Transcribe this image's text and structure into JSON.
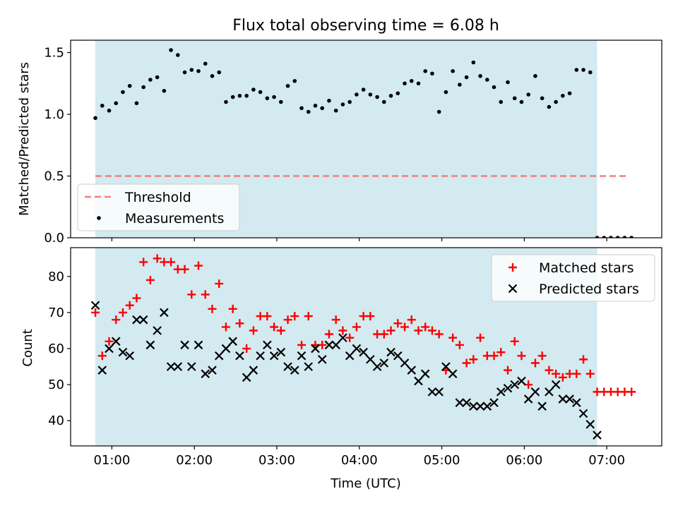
{
  "chart_data": [
    {
      "type": "scatter",
      "title": "Flux total observing time = 6.08 h",
      "ylabel": "Matched/Predicted stars",
      "xlabel": "",
      "xlim": [
        "00:30",
        "07:40"
      ],
      "ylim": [
        0,
        1.6
      ],
      "y_ticks": [
        "0.0",
        "0.5",
        "1.0",
        "1.5"
      ],
      "x_ticks": [
        "01:00",
        "02:00",
        "03:00",
        "04:00",
        "05:00",
        "06:00",
        "07:00"
      ],
      "observing_window": [
        "00:48",
        "06:53"
      ],
      "observing_window_color": "#d3eaf0",
      "grid": false,
      "legend_position": "lower-left",
      "legend": [
        "Threshold",
        "Measurements"
      ],
      "series": [
        {
          "name": "Threshold",
          "style": "dashed-line",
          "color": "#f08080",
          "x": [
            "00:48",
            "07:15"
          ],
          "y": [
            0.5,
            0.5
          ]
        },
        {
          "name": "Measurements",
          "style": "dot",
          "color": "#000000",
          "x": [
            "00:48",
            "00:53",
            "00:58",
            "01:03",
            "01:08",
            "01:13",
            "01:18",
            "01:23",
            "01:28",
            "01:33",
            "01:38",
            "01:43",
            "01:48",
            "01:53",
            "01:58",
            "02:03",
            "02:08",
            "02:13",
            "02:18",
            "02:23",
            "02:28",
            "02:33",
            "02:38",
            "02:43",
            "02:48",
            "02:53",
            "02:58",
            "03:03",
            "03:08",
            "03:13",
            "03:18",
            "03:23",
            "03:28",
            "03:33",
            "03:38",
            "03:43",
            "03:48",
            "03:53",
            "03:58",
            "04:03",
            "04:08",
            "04:13",
            "04:18",
            "04:23",
            "04:28",
            "04:33",
            "04:38",
            "04:43",
            "04:48",
            "04:53",
            "04:58",
            "05:03",
            "05:08",
            "05:13",
            "05:18",
            "05:23",
            "05:28",
            "05:33",
            "05:38",
            "05:43",
            "05:48",
            "05:53",
            "05:58",
            "06:03",
            "06:08",
            "06:13",
            "06:18",
            "06:23",
            "06:28",
            "06:33",
            "06:38",
            "06:43",
            "06:48",
            "06:53",
            "06:58",
            "07:03",
            "07:08",
            "07:13",
            "07:18"
          ],
          "y": [
            0.97,
            1.07,
            1.03,
            1.09,
            1.18,
            1.23,
            1.09,
            1.22,
            1.28,
            1.3,
            1.19,
            1.52,
            1.48,
            1.34,
            1.36,
            1.35,
            1.41,
            1.31,
            1.34,
            1.1,
            1.14,
            1.15,
            1.15,
            1.2,
            1.18,
            1.13,
            1.14,
            1.1,
            1.23,
            1.27,
            1.05,
            1.02,
            1.07,
            1.05,
            1.11,
            1.03,
            1.08,
            1.1,
            1.16,
            1.2,
            1.16,
            1.14,
            1.1,
            1.15,
            1.17,
            1.25,
            1.27,
            1.25,
            1.35,
            1.33,
            1.02,
            1.18,
            1.35,
            1.24,
            1.3,
            1.42,
            1.31,
            1.28,
            1.22,
            1.1,
            1.26,
            1.13,
            1.1,
            1.16,
            1.31,
            1.13,
            1.06,
            1.1,
            1.15,
            1.17,
            1.36,
            1.36,
            1.34,
            0.0,
            0.0,
            0.0,
            0.0,
            0.0,
            0.0
          ]
        }
      ]
    },
    {
      "type": "scatter",
      "title": "",
      "ylabel": "Count",
      "xlabel": "Time (UTC)",
      "xlim": [
        "00:30",
        "07:40"
      ],
      "ylim": [
        33,
        88
      ],
      "y_ticks": [
        "40",
        "50",
        "60",
        "70",
        "80"
      ],
      "x_ticks": [
        "01:00",
        "02:00",
        "03:00",
        "04:00",
        "05:00",
        "06:00",
        "07:00"
      ],
      "observing_window": [
        "00:48",
        "06:53"
      ],
      "observing_window_color": "#d3eaf0",
      "grid": false,
      "legend_position": "top-right",
      "legend": [
        "Matched stars",
        "Predicted stars"
      ],
      "series": [
        {
          "name": "Matched stars",
          "style": "plus",
          "color": "#ff0000",
          "x": [
            "00:48",
            "00:53",
            "00:58",
            "01:03",
            "01:08",
            "01:13",
            "01:18",
            "01:23",
            "01:28",
            "01:33",
            "01:38",
            "01:43",
            "01:48",
            "01:53",
            "01:58",
            "02:03",
            "02:08",
            "02:13",
            "02:18",
            "02:23",
            "02:28",
            "02:33",
            "02:38",
            "02:43",
            "02:48",
            "02:53",
            "02:58",
            "03:03",
            "03:08",
            "03:13",
            "03:18",
            "03:23",
            "03:28",
            "03:33",
            "03:38",
            "03:43",
            "03:48",
            "03:53",
            "03:58",
            "04:03",
            "04:08",
            "04:13",
            "04:18",
            "04:23",
            "04:28",
            "04:33",
            "04:38",
            "04:43",
            "04:48",
            "04:53",
            "04:58",
            "05:03",
            "05:08",
            "05:13",
            "05:18",
            "05:23",
            "05:28",
            "05:33",
            "05:38",
            "05:43",
            "05:48",
            "05:53",
            "05:58",
            "06:03",
            "06:08",
            "06:13",
            "06:18",
            "06:23",
            "06:28",
            "06:33",
            "06:38",
            "06:43",
            "06:48",
            "06:53",
            "06:58",
            "07:03",
            "07:08",
            "07:13",
            "07:18"
          ],
          "y": [
            70,
            58,
            62,
            68,
            70,
            72,
            74,
            84,
            79,
            85,
            84,
            84,
            82,
            82,
            75,
            83,
            75,
            71,
            78,
            66,
            71,
            67,
            60,
            65,
            69,
            69,
            66,
            65,
            68,
            69,
            61,
            69,
            61,
            61,
            64,
            68,
            65,
            63,
            66,
            69,
            69,
            64,
            64,
            65,
            67,
            66,
            68,
            65,
            66,
            65,
            64,
            54,
            63,
            61,
            56,
            57,
            63,
            58,
            58,
            59,
            54,
            62,
            58,
            50,
            56,
            58,
            54,
            53,
            52,
            53,
            53,
            57,
            53,
            48,
            48,
            48,
            48,
            48,
            48
          ]
        },
        {
          "name": "Predicted stars",
          "style": "x",
          "color": "#000000",
          "x": [
            "00:48",
            "00:53",
            "00:58",
            "01:03",
            "01:08",
            "01:13",
            "01:18",
            "01:23",
            "01:28",
            "01:33",
            "01:38",
            "01:43",
            "01:48",
            "01:53",
            "01:58",
            "02:03",
            "02:08",
            "02:13",
            "02:18",
            "02:23",
            "02:28",
            "02:33",
            "02:38",
            "02:43",
            "02:48",
            "02:53",
            "02:58",
            "03:03",
            "03:08",
            "03:13",
            "03:18",
            "03:23",
            "03:28",
            "03:33",
            "03:38",
            "03:43",
            "03:48",
            "03:53",
            "03:58",
            "04:03",
            "04:08",
            "04:13",
            "04:18",
            "04:23",
            "04:28",
            "04:33",
            "04:38",
            "04:43",
            "04:48",
            "04:53",
            "04:58",
            "05:03",
            "05:08",
            "05:13",
            "05:18",
            "05:23",
            "05:28",
            "05:33",
            "05:38",
            "05:43",
            "05:48",
            "05:53",
            "05:58",
            "06:03",
            "06:08",
            "06:13",
            "06:18",
            "06:23",
            "06:28",
            "06:33",
            "06:38",
            "06:43",
            "06:48",
            "06:53"
          ],
          "y": [
            72,
            54,
            60,
            62,
            59,
            58,
            68,
            68,
            61,
            65,
            70,
            55,
            55,
            61,
            55,
            61,
            53,
            54,
            58,
            60,
            62,
            58,
            52,
            54,
            58,
            61,
            58,
            59,
            55,
            54,
            58,
            55,
            60,
            57,
            61,
            61,
            63,
            58,
            60,
            59,
            57,
            55,
            56,
            59,
            58,
            56,
            54,
            51,
            53,
            48,
            48,
            55,
            53,
            45,
            45,
            44,
            44,
            44,
            45,
            48,
            49,
            50,
            51,
            46,
            48,
            44,
            48,
            50,
            46,
            46,
            45,
            42,
            39,
            36
          ]
        }
      ]
    }
  ]
}
